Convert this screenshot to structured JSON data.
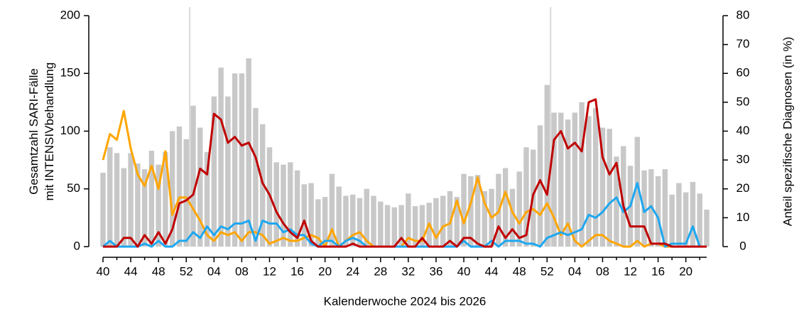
{
  "chart_data": {
    "type": "bar",
    "xlabel": "Kalenderwoche 2024 bis 2026",
    "ylabel": [
      "Gesamtzahl SARI-Fälle",
      "mit INTENSIVbehandlung"
    ],
    "y2label": "Anteil spezifische Diagnosen (in %)",
    "categories": [
      "40",
      null,
      null,
      null,
      "44",
      null,
      null,
      null,
      "48",
      null,
      null,
      null,
      "52",
      null,
      null,
      null,
      "04",
      null,
      null,
      null,
      "08",
      null,
      null,
      null,
      "12",
      null,
      null,
      null,
      "16",
      null,
      null,
      null,
      "20",
      null,
      null,
      null,
      "24",
      null,
      null,
      null,
      "28",
      null,
      null,
      null,
      "32",
      null,
      null,
      null,
      "36",
      null,
      null,
      null,
      "40",
      null,
      null,
      null,
      "44",
      null,
      null,
      null,
      "48",
      null,
      null,
      null,
      "52",
      null,
      null,
      null,
      "04",
      null,
      null,
      null,
      "08",
      null,
      null,
      null,
      "12",
      null,
      null,
      null,
      "16",
      null,
      null,
      null,
      "20",
      null,
      null,
      null
    ],
    "ylim": [
      0,
      200
    ],
    "yticks": [
      0,
      50,
      100,
      150,
      200
    ],
    "y2lim": [
      0,
      80
    ],
    "y2ticks": [
      0,
      10,
      20,
      30,
      40,
      50,
      60,
      70,
      80
    ],
    "series": [
      {
        "type": "bar",
        "color": "#c8c8c8",
        "values": [
          64,
          86,
          81,
          68,
          81,
          72,
          67,
          83,
          71,
          82,
          100,
          104,
          93,
          122,
          103,
          82,
          130,
          155,
          130,
          150,
          150,
          163,
          120,
          106,
          86,
          73,
          71,
          73,
          66,
          54,
          55,
          41,
          43,
          63,
          52,
          44,
          45,
          42,
          50,
          44,
          39,
          36,
          34,
          36,
          46,
          35,
          36,
          38,
          42,
          44,
          48,
          43,
          63,
          61,
          62,
          48,
          50,
          63,
          68,
          50,
          65,
          86,
          84,
          105,
          140,
          116,
          116,
          110,
          116,
          125,
          113,
          120,
          103,
          102,
          78,
          87,
          70,
          95,
          66,
          67,
          61,
          67,
          45,
          55,
          47,
          56,
          46,
          32
        ]
      },
      {
        "type": "line",
        "axis": "y2",
        "color": "#ffa500",
        "values": [
          30,
          39,
          37,
          47,
          34,
          25,
          21,
          28,
          20,
          33,
          11,
          17,
          17,
          13,
          9,
          4,
          2,
          5,
          4,
          5,
          2,
          5,
          5,
          4,
          1,
          2,
          3,
          2,
          2,
          3,
          4,
          3,
          0,
          6,
          0,
          2,
          4,
          5,
          2,
          0,
          0,
          0,
          0,
          0,
          3,
          2,
          2,
          8,
          3,
          7,
          8,
          16,
          8,
          15,
          24,
          15,
          10,
          12,
          19,
          12,
          8,
          12,
          13,
          11,
          15,
          10,
          4,
          8,
          2,
          0,
          2,
          4,
          4,
          2,
          1,
          0,
          0,
          2,
          0,
          1,
          1,
          0,
          0,
          0,
          0,
          0,
          0,
          0
        ]
      },
      {
        "type": "line",
        "axis": "y2",
        "color": "#1ea7f0",
        "values": [
          0,
          2,
          0,
          0,
          0,
          0,
          1,
          0,
          2,
          0,
          0,
          2,
          2,
          5,
          3,
          7,
          4,
          7,
          6,
          8,
          8,
          9,
          2,
          9,
          8,
          8,
          5,
          6,
          4,
          4,
          1,
          0,
          2,
          2,
          0,
          2,
          3,
          2,
          0,
          0,
          0,
          0,
          0,
          0,
          0,
          0,
          0,
          0,
          0,
          0,
          0,
          0,
          2,
          0,
          0,
          0,
          2,
          0,
          2,
          2,
          2,
          1,
          1,
          0,
          3,
          4,
          5,
          4,
          5,
          6,
          11,
          10,
          12,
          15,
          17,
          12,
          14,
          22,
          12,
          14,
          10,
          0,
          1,
          1,
          1,
          7,
          0,
          0
        ]
      },
      {
        "type": "line",
        "axis": "y2",
        "color": "#c00000",
        "values": [
          0,
          0,
          0,
          3,
          3,
          0,
          4,
          1,
          5,
          1,
          6,
          15,
          16,
          18,
          27,
          25,
          46,
          44,
          36,
          38,
          35,
          36,
          31,
          22,
          18,
          12,
          8,
          5,
          3,
          9,
          2,
          0,
          0,
          0,
          0,
          0,
          1,
          0,
          0,
          0,
          0,
          0,
          0,
          3,
          0,
          0,
          3,
          0,
          0,
          0,
          2,
          0,
          3,
          3,
          1,
          0,
          0,
          7,
          3,
          6,
          3,
          4,
          18,
          23,
          18,
          37,
          40,
          34,
          36,
          33,
          50,
          51,
          31,
          25,
          29,
          14,
          7,
          7,
          7,
          1,
          1,
          1,
          0,
          0,
          0,
          0,
          0,
          0
        ]
      }
    ]
  }
}
